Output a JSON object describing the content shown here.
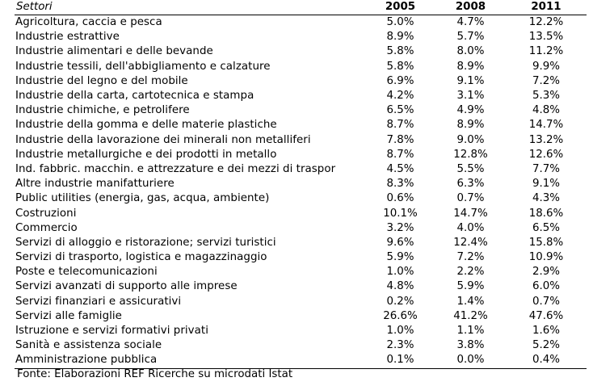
{
  "table": {
    "columns": [
      "Settori",
      "2005",
      "2008",
      "2011"
    ],
    "rows": [
      {
        "sector": "Agricoltura, caccia e pesca",
        "v2005": "5.0%",
        "v2008": "4.7%",
        "v2011": "12.2%"
      },
      {
        "sector": "Industrie estrattive",
        "v2005": "8.9%",
        "v2008": "5.7%",
        "v2011": "13.5%"
      },
      {
        "sector": "Industrie alimentari e delle bevande",
        "v2005": "5.8%",
        "v2008": "8.0%",
        "v2011": "11.2%"
      },
      {
        "sector": "Industrie tessili, dell'abbigliamento e calzature",
        "v2005": "5.8%",
        "v2008": "8.9%",
        "v2011": "9.9%"
      },
      {
        "sector": "Industrie del legno e del mobile",
        "v2005": "6.9%",
        "v2008": "9.1%",
        "v2011": "7.2%"
      },
      {
        "sector": "Industrie della carta, cartotecnica e stampa",
        "v2005": "4.2%",
        "v2008": "3.1%",
        "v2011": "5.3%"
      },
      {
        "sector": "Industrie chimiche, e petrolifere",
        "v2005": "6.5%",
        "v2008": "4.9%",
        "v2011": "4.8%"
      },
      {
        "sector": "Industrie della gomma e delle materie plastiche",
        "v2005": "8.7%",
        "v2008": "8.9%",
        "v2011": "14.7%"
      },
      {
        "sector": "Industrie della lavorazione dei minerali non metalliferi",
        "v2005": "7.8%",
        "v2008": "9.0%",
        "v2011": "13.2%"
      },
      {
        "sector": "Industrie metallurgiche e dei prodotti in metallo",
        "v2005": "8.7%",
        "v2008": "12.8%",
        "v2011": "12.6%"
      },
      {
        "sector": "Ind. fabbric. macchin. e attrezzature e dei mezzi di traspor",
        "v2005": "4.5%",
        "v2008": "5.5%",
        "v2011": "7.7%"
      },
      {
        "sector": "Altre industrie manifatturiere",
        "v2005": "8.3%",
        "v2008": "6.3%",
        "v2011": "9.1%"
      },
      {
        "sector": "Public utilities (energia, gas, acqua, ambiente)",
        "v2005": "0.6%",
        "v2008": "0.7%",
        "v2011": "4.3%"
      },
      {
        "sector": "Costruzioni",
        "v2005": "10.1%",
        "v2008": "14.7%",
        "v2011": "18.6%"
      },
      {
        "sector": "Commercio",
        "v2005": "3.2%",
        "v2008": "4.0%",
        "v2011": "6.5%"
      },
      {
        "sector": "Servizi di alloggio e ristorazione; servizi turistici",
        "v2005": "9.6%",
        "v2008": "12.4%",
        "v2011": "15.8%"
      },
      {
        "sector": "Servizi di trasporto, logistica e magazzinaggio",
        "v2005": "5.9%",
        "v2008": "7.2%",
        "v2011": "10.9%"
      },
      {
        "sector": "Poste e telecomunicazioni",
        "v2005": "1.0%",
        "v2008": "2.2%",
        "v2011": "2.9%"
      },
      {
        "sector": "Servizi avanzati di supporto alle imprese",
        "v2005": "4.8%",
        "v2008": "5.9%",
        "v2011": "6.0%"
      },
      {
        "sector": "Servizi finanziari e assicurativi",
        "v2005": "0.2%",
        "v2008": "1.4%",
        "v2011": "0.7%"
      },
      {
        "sector": "Servizi alle famiglie",
        "v2005": "26.6%",
        "v2008": "41.2%",
        "v2011": "47.6%"
      },
      {
        "sector": "Istruzione e servizi formativi privati",
        "v2005": "1.0%",
        "v2008": "1.1%",
        "v2011": "1.6%"
      },
      {
        "sector": "Sanità e assistenza sociale",
        "v2005": "2.3%",
        "v2008": "3.8%",
        "v2011": "5.2%"
      },
      {
        "sector": "Amministrazione pubblica",
        "v2005": "0.1%",
        "v2008": "0.0%",
        "v2011": "0.4%"
      }
    ]
  },
  "source": "Fonte: Elaborazioni REF Ricerche su microdati Istat"
}
